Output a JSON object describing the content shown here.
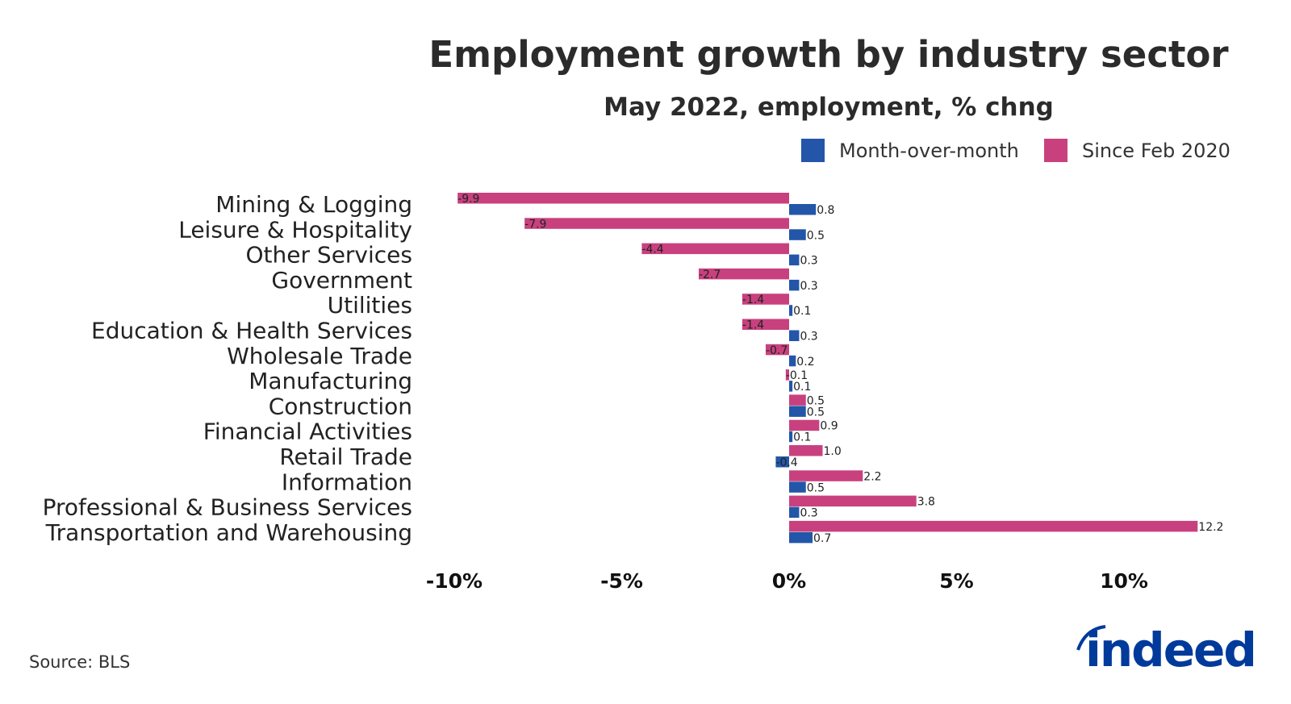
{
  "chart_data": {
    "type": "bar",
    "orientation": "horizontal",
    "title": "Employment growth by industry sector",
    "subtitle": "May 2022, employment, % chng",
    "categories": [
      "Mining & Logging",
      "Leisure & Hospitality",
      "Other Services",
      "Government",
      "Utilities",
      "Education & Health Services",
      "Wholesale Trade",
      "Manufacturing",
      "Construction",
      "Financial Activities",
      "Retail Trade",
      "Information",
      "Professional & Business Services",
      "Transportation and Warehousing"
    ],
    "series": [
      {
        "name": "Month-over-month",
        "color": "#2356a8",
        "values": [
          0.8,
          0.5,
          0.3,
          0.3,
          0.1,
          0.3,
          0.2,
          0.1,
          0.5,
          0.1,
          -0.4,
          0.5,
          0.3,
          0.7
        ]
      },
      {
        "name": "Since Feb 2020",
        "color": "#c8417e",
        "values": [
          -9.9,
          -7.9,
          -4.4,
          -2.7,
          -1.4,
          -1.4,
          -0.7,
          -0.1,
          0.5,
          0.9,
          1.0,
          2.2,
          3.8,
          12.2
        ]
      }
    ],
    "xticks": [
      -10,
      -5,
      0,
      5,
      10
    ],
    "xtick_labels": [
      "-10%",
      "-5%",
      "0%",
      "5%",
      "10%"
    ],
    "xlim": [
      -10,
      12.2
    ],
    "grid": false,
    "legend_position": "top-right",
    "source": "Source: BLS",
    "logo": "indeed"
  }
}
